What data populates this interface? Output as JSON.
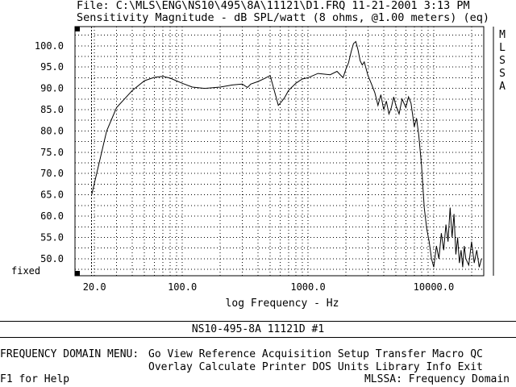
{
  "header": {
    "file_line": "File: C:\\MLS\\ENG\\NS10\\495\\8A\\11121\\D1.FRQ 11-21-2001 3:13 PM"
  },
  "side_label": "MLSSA",
  "footer_label": "NS10-495-8A 11121D #1",
  "menu": {
    "title": "FREQUENCY DOMAIN MENU:",
    "row1": [
      "Go",
      "View",
      "Reference",
      "Acquisition",
      "Setup",
      "Transfer",
      "Macro",
      "QC"
    ],
    "row2": [
      "Overlay",
      "Calculate",
      "Printer",
      "DOS",
      "Units",
      "Library",
      "Info",
      "Exit"
    ]
  },
  "status": {
    "help": "F1 for Help",
    "mode": "MLSSA: Frequency Domain"
  },
  "chart_data": {
    "type": "line",
    "title": "Sensitivity Magnitude - dB SPL/watt (8 ohms, @1.00 meters) (eq)",
    "xlabel": "log Frequency - Hz",
    "ylabel": "",
    "x_scale": "log",
    "xlim": [
      14,
      25000
    ],
    "ylim": [
      46,
      104.5
    ],
    "x_tick_labels": [
      {
        "value": 20,
        "label": "20.0"
      },
      {
        "value": 100,
        "label": "100.0"
      },
      {
        "value": 1000,
        "label": "1000.0"
      },
      {
        "value": 10000,
        "label": "10000.0"
      }
    ],
    "y_tick_labels": [
      {
        "value": 100,
        "label": "100.0"
      },
      {
        "value": 95,
        "label": "95.0"
      },
      {
        "value": 90,
        "label": "90.0"
      },
      {
        "value": 85,
        "label": "85.0"
      },
      {
        "value": 80,
        "label": "80.0"
      },
      {
        "value": 75,
        "label": "75.0"
      },
      {
        "value": 70,
        "label": "70.0"
      },
      {
        "value": 65,
        "label": "65.0"
      },
      {
        "value": 60,
        "label": "60.0"
      },
      {
        "value": 55,
        "label": "55.0"
      },
      {
        "value": 50,
        "label": "50.0"
      }
    ],
    "fixed_label": "fixed",
    "grid": true,
    "series": [
      {
        "x": [
          19,
          25,
          30,
          40,
          50,
          60,
          70,
          80,
          100,
          120,
          150,
          200,
          250,
          300,
          330,
          350,
          400,
          450,
          500,
          550,
          580,
          600,
          620,
          650,
          700,
          800,
          900,
          1000,
          1200,
          1500,
          1700,
          1900,
          2000,
          2100,
          2200,
          2300,
          2400,
          2500,
          2600,
          2700,
          2800,
          3000,
          3200,
          3400,
          3600,
          3800,
          4000,
          4200,
          4400,
          4600,
          4800,
          5000,
          5300,
          5600,
          6000,
          6300,
          6600,
          7000,
          7300,
          7600,
          8000,
          8400,
          8800,
          9200,
          9600,
          10000,
          10500,
          11000,
          11500,
          12000,
          12500,
          13000,
          13500,
          14000,
          14500,
          15000,
          15500,
          16000,
          16500,
          17000,
          17500,
          18000,
          19000,
          20000,
          21000,
          22000,
          23000,
          24000
        ],
        "y": [
          65,
          80,
          85.5,
          89.5,
          91.8,
          92.6,
          92.8,
          92.4,
          91.2,
          90.3,
          90.0,
          90.3,
          90.8,
          91.0,
          90.2,
          91.0,
          91.6,
          92.3,
          93.0,
          88.5,
          86.0,
          86.5,
          87.0,
          87.8,
          89.5,
          91.2,
          92.2,
          92.5,
          93.5,
          93.2,
          94.0,
          92.5,
          94.5,
          96.0,
          98.5,
          100.5,
          101.0,
          99.0,
          96.5,
          95.5,
          96.2,
          93.0,
          91.0,
          89.0,
          86.0,
          88.5,
          85.0,
          87.0,
          84.0,
          85.5,
          88.0,
          86.0,
          84.0,
          87.5,
          85.5,
          88.0,
          86.5,
          81.0,
          83.0,
          79.0,
          72.0,
          62.0,
          57.0,
          54.0,
          50.0,
          48.0,
          53.0,
          50.0,
          56.0,
          52.0,
          58.0,
          54.0,
          62.0,
          55.0,
          60.5,
          51.0,
          55.0,
          49.0,
          52.0,
          48.0,
          53.0,
          50.0,
          48.5,
          54.0,
          49.0,
          52.0,
          48.0,
          50.0
        ]
      }
    ]
  }
}
